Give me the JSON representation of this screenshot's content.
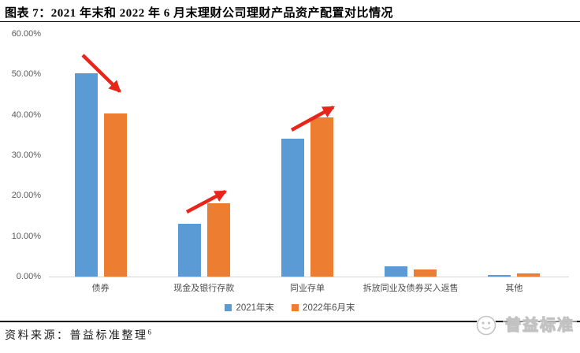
{
  "title": "图表 7：2021 年末和 2022 年 6 月末理财公司理财产品资产配置对比情况",
  "source_note": {
    "text": "资料来源：普益标准整理",
    "superscript": "6"
  },
  "watermark": {
    "text": "普益标准"
  },
  "chart_data": {
    "type": "bar",
    "title": "2021年末和2022年6月末理财公司理财产品资产配置对比",
    "categories": [
      "债券",
      "现金及银行存款",
      "同业存单",
      "拆放同业及债券买入返售",
      "其他"
    ],
    "series": [
      {
        "name": "2021年末",
        "color": "#5B9BD5",
        "values": [
          50.3,
          13.0,
          34.1,
          2.5,
          0.4
        ]
      },
      {
        "name": "2022年6月末",
        "color": "#ED7D31",
        "values": [
          40.3,
          18.2,
          39.3,
          1.8,
          0.7
        ]
      }
    ],
    "xlabel": "",
    "ylabel": "",
    "ylim": [
      0,
      60
    ],
    "yticks": [
      {
        "value": 0,
        "label": "0.00%"
      },
      {
        "value": 10,
        "label": "10.00%"
      },
      {
        "value": 20,
        "label": "20.00%"
      },
      {
        "value": 30,
        "label": "30.00%"
      },
      {
        "value": 40,
        "label": "40.00%"
      },
      {
        "value": 50,
        "label": "50.00%"
      },
      {
        "value": 60,
        "label": "60.00%"
      }
    ],
    "grid": false,
    "legend_position": "bottom",
    "annotations": [
      {
        "type": "arrow",
        "trend": "decrease",
        "category": "债券",
        "from": [
          105,
          70
        ],
        "to": [
          152,
          116
        ]
      },
      {
        "type": "arrow",
        "trend": "increase",
        "category": "现金及银行存款",
        "from": [
          237,
          269
        ],
        "to": [
          286,
          243
        ]
      },
      {
        "type": "arrow",
        "trend": "increase",
        "category": "同业存单",
        "from": [
          370,
          165
        ],
        "to": [
          423,
          136
        ]
      }
    ],
    "annotation_color": "#e8251a",
    "axis_label_color": "#595959",
    "axis_line_color": "#d6d6d6"
  }
}
